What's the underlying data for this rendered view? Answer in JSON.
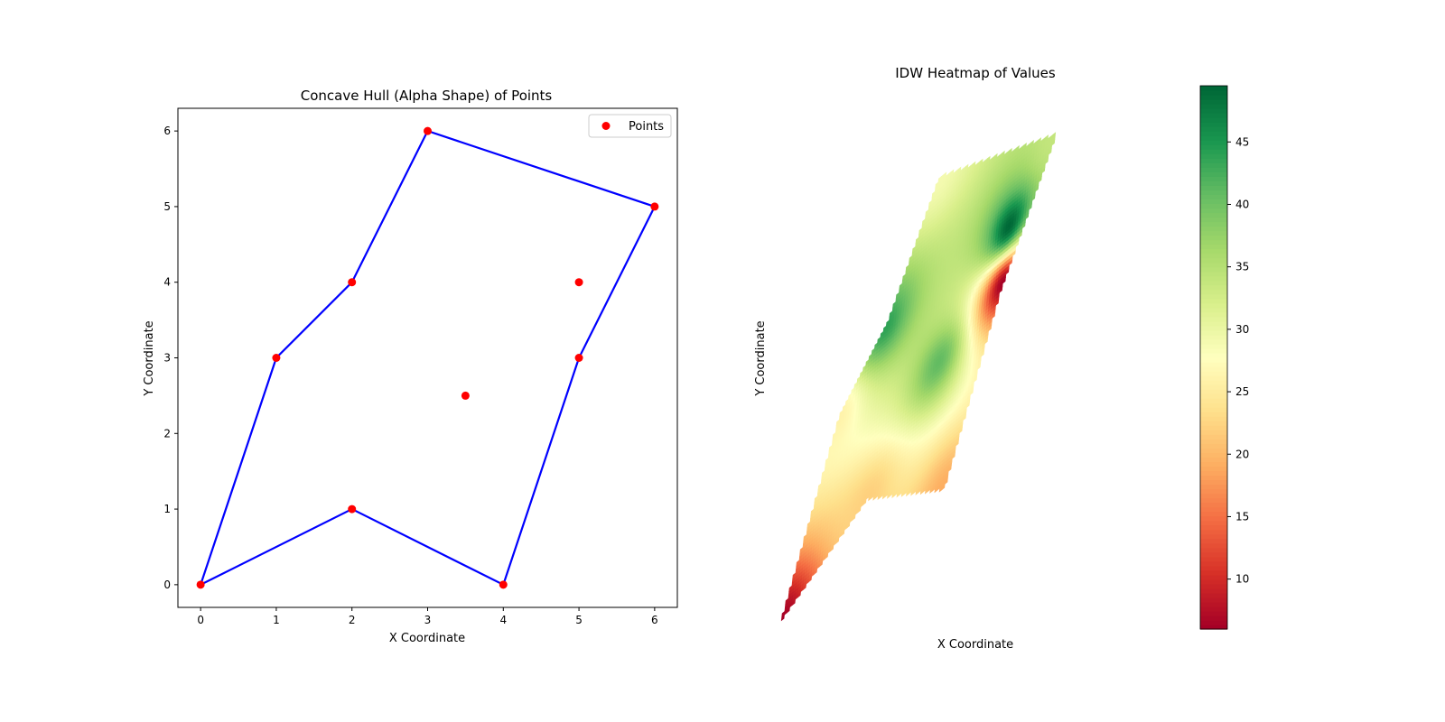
{
  "chart_data": [
    {
      "type": "scatter",
      "title": "Concave Hull (Alpha Shape) of Points",
      "xlabel": "X Coordinate",
      "ylabel": "Y Coordinate",
      "xlim": [
        -0.3,
        6.3
      ],
      "ylim": [
        -0.3,
        6.3
      ],
      "xticks": [
        "0",
        "1",
        "2",
        "3",
        "4",
        "5",
        "6"
      ],
      "yticks": [
        "0",
        "1",
        "2",
        "3",
        "4",
        "5",
        "6"
      ],
      "grid": false,
      "legend": {
        "placement": "upper right",
        "entries": [
          "Points"
        ]
      },
      "series": [
        {
          "name": "Points",
          "kind": "scatter",
          "color": "#ff0000",
          "x": [
            0,
            1,
            2,
            3,
            6,
            5,
            5,
            3.5,
            4,
            2
          ],
          "y": [
            0,
            3,
            4,
            6,
            5,
            4,
            3,
            2.5,
            0,
            1
          ]
        },
        {
          "kind": "polygon",
          "color": "#0000ff",
          "x": [
            0,
            1,
            2,
            3,
            6,
            5,
            4,
            2
          ],
          "y": [
            0,
            3,
            4,
            6,
            5,
            3,
            0,
            1
          ]
        }
      ]
    },
    {
      "type": "heatmap",
      "title": "IDW Heatmap of Values",
      "xlabel": "X Coordinate",
      "ylabel": "Y Coordinate",
      "axes_visible": false,
      "colormap": "RdYlGn",
      "colorbar": {
        "min": 6,
        "max": 49.5,
        "ticks": [
          "10",
          "15",
          "20",
          "25",
          "30",
          "35",
          "40",
          "45"
        ]
      },
      "points": {
        "x": [
          0,
          1,
          2,
          3,
          6,
          5,
          5,
          3.5,
          4,
          2
        ],
        "y": [
          0,
          3,
          4,
          6,
          5,
          4,
          3,
          2.5,
          0,
          1
        ],
        "values": [
          6,
          26,
          44,
          29,
          34,
          49.5,
          6,
          41,
          19,
          22
        ]
      }
    }
  ]
}
